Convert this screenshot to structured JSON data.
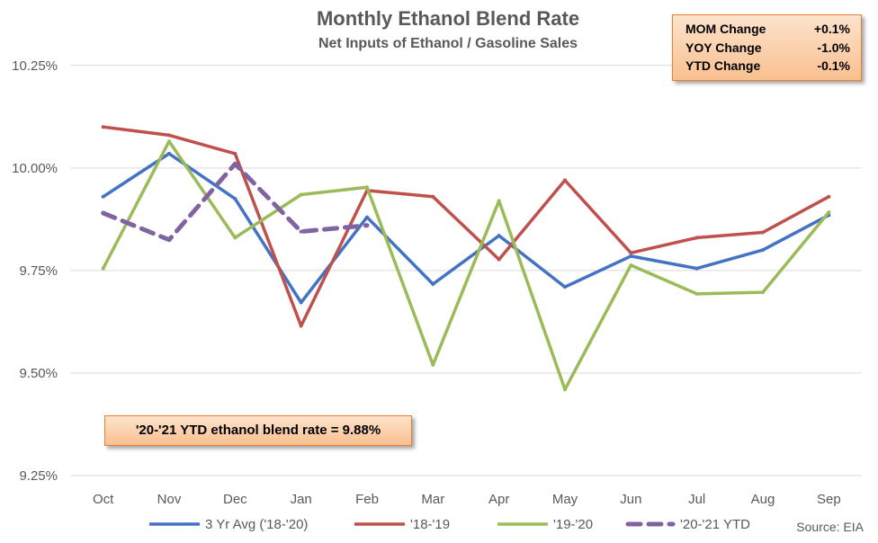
{
  "chart_data": {
    "type": "line",
    "title": "Monthly Ethanol Blend Rate",
    "subtitle": "Net Inputs of Ethanol / Gasoline Sales",
    "categories": [
      "Oct",
      "Nov",
      "Dec",
      "Jan",
      "Feb",
      "Mar",
      "Apr",
      "May",
      "Jun",
      "Jul",
      "Aug",
      "Sep"
    ],
    "ylim": [
      9.25,
      10.3
    ],
    "yticks": [
      9.25,
      9.5,
      9.75,
      10.0,
      10.25
    ],
    "ytick_labels": [
      "9.25%",
      "9.50%",
      "9.75%",
      "10.00%",
      "10.25%"
    ],
    "grid": true,
    "legend_position": "bottom",
    "series": [
      {
        "name": "3 Yr Avg ('18-'20)",
        "color": "#4472c4",
        "dash": false,
        "values": [
          9.93,
          10.035,
          9.925,
          9.672,
          9.88,
          9.717,
          9.835,
          9.71,
          9.785,
          9.755,
          9.8,
          9.885
        ]
      },
      {
        "name": "'18-'19",
        "color": "#c0504d",
        "dash": false,
        "values": [
          10.1,
          10.08,
          10.035,
          9.615,
          9.945,
          9.93,
          9.777,
          9.97,
          9.793,
          9.83,
          9.843,
          9.93
        ]
      },
      {
        "name": "'19-'20",
        "color": "#9bbb59",
        "dash": false,
        "values": [
          9.755,
          10.065,
          9.83,
          9.935,
          9.953,
          9.52,
          9.92,
          9.46,
          9.763,
          9.693,
          9.697,
          9.892
        ]
      },
      {
        "name": "'20-'21 YTD",
        "color": "#8064a2",
        "dash": true,
        "values": [
          9.89,
          9.825,
          10.01,
          9.845,
          9.86,
          null,
          null,
          null,
          null,
          null,
          null,
          null
        ]
      }
    ]
  },
  "stats": [
    {
      "label": "MOM Change",
      "value": "+0.1%"
    },
    {
      "label": "YOY Change",
      "value": "-1.0%"
    },
    {
      "label": "YTD Change",
      "value": "-0.1%"
    }
  ],
  "note": "'20-'21 YTD ethanol blend rate = 9.88%",
  "source": "Source: EIA",
  "colors": {
    "axis": "#d9d9d9",
    "text": "#595959",
    "box_border": "#ed7d31"
  }
}
